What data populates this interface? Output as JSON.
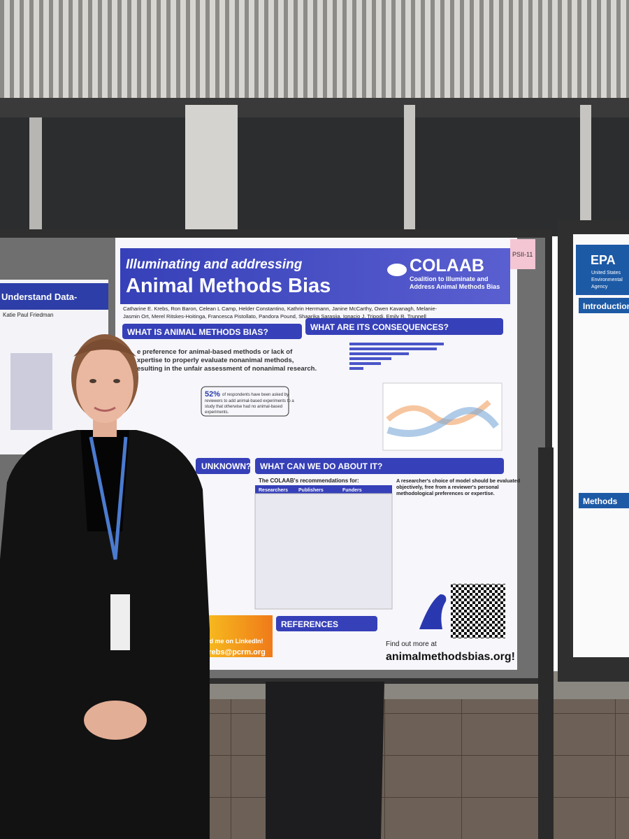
{
  "poster": {
    "tag": "PSII-11",
    "title_line1": "Illuminating and addressing",
    "title_line2": "Animal Methods Bias",
    "logo": "COLAAB",
    "logo_tagline": [
      "Coalition to Illuminate and",
      "Address Animal Methods Bias"
    ],
    "authors": [
      "Catharine E. Krebs, Ron Baron, Celean L Camp, Helder Constantino, Kathrin Herrmann, Janine McCarthy, Owen Kavanagh, Melanie-",
      "Jasmin Ort, Merel Ritskes-Hoitinga, Francesca Pistollato, Pandora Pound, Shaarika Sarasija, Ignacio J. Tripodi, Emily R. Trunnell"
    ],
    "sections": [
      "WHAT IS ANIMAL METHODS BIAS?",
      "WHAT ARE ITS CONSEQUENCES?",
      "UNKNOWN?",
      "WHAT CAN WE DO ABOUT IT?",
      "REFERENCES"
    ],
    "quote": [
      "e preference for animal-based methods or lack of",
      "xpertise to properly evaluate nonanimal methods,",
      "esulting in the unfair assessment of nonanimal research."
    ],
    "stat": "52%",
    "stat_text": [
      "of respondents have been asked by",
      "reviewers to add animal-based experiments to a",
      "study that otherwise had no animal-based",
      "experiments."
    ],
    "recommendations_title": "The COLAAB's recommendations for:",
    "table_headers": [
      "Researchers",
      "Publishers",
      "Funders"
    ],
    "summary": [
      "A researcher's choice of model should be evaluated",
      "objectively, free from a reviewer's personal",
      "methodological preferences or expertise."
    ],
    "linkedin": "Find me on LinkedIn!",
    "email": "ckrebs@pcrm.org",
    "find_out": "Find out more at",
    "website": "animalmethodsbias.org!"
  },
  "left_poster": {
    "title": "Understand Data-",
    "author": "Katie Paul Friedman"
  },
  "right_poster": {
    "agency": "EPA",
    "agency_name": [
      "United States",
      "Environmental",
      "Agency"
    ],
    "sections": [
      "Introduction",
      "Methods"
    ]
  }
}
